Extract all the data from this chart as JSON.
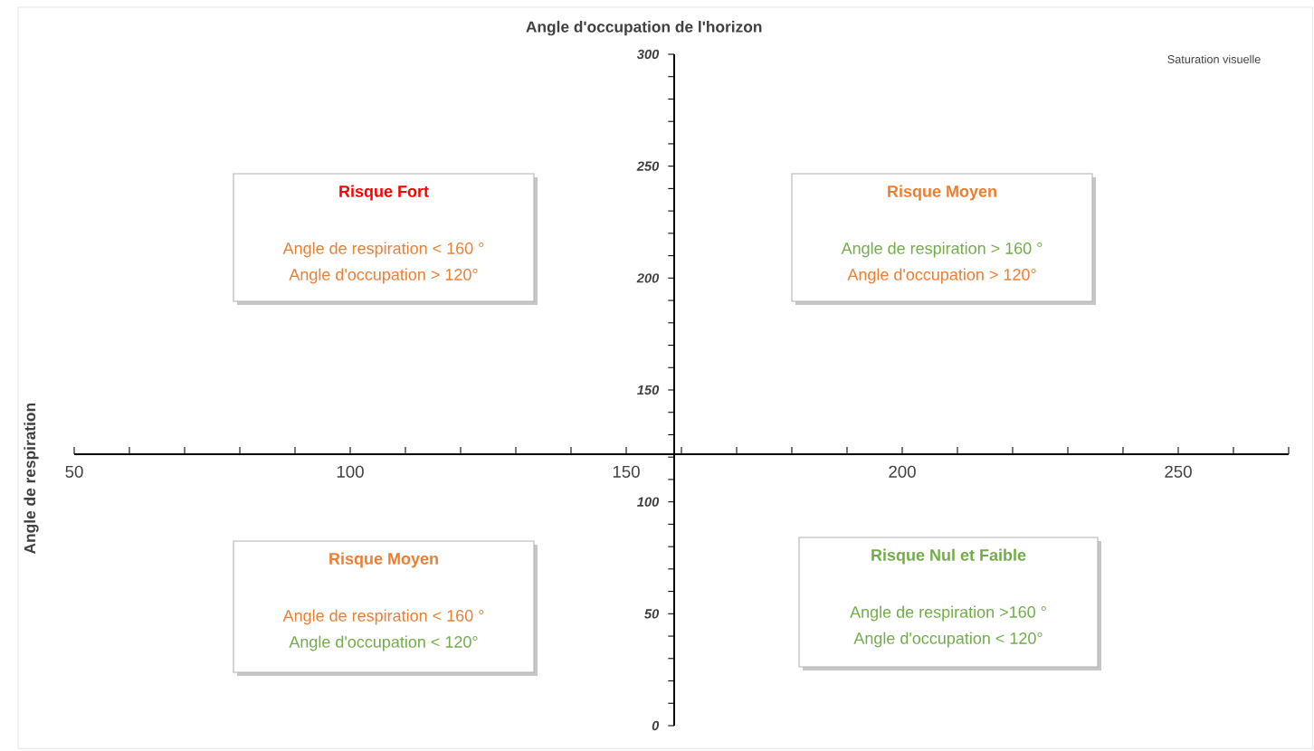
{
  "chart_data": {
    "type": "scatter",
    "xlabel": "Angle d'occupation de l'horizon",
    "ylabel": "Angle de respiration",
    "xlim": [
      50,
      270
    ],
    "ylim": [
      0,
      300
    ],
    "xticks": [
      50,
      100,
      150,
      200,
      250
    ],
    "yticks": [
      0,
      50,
      100,
      150,
      200,
      250,
      300
    ],
    "annotations": [
      "Risque Fort",
      "Angle de respiration < 160 °",
      "Angle d'occupation > 120°",
      "Risque Moyen",
      "Angle de respiration > 160 °",
      "Angle d'occupation > 120°",
      "Risque Moyen",
      "Angle de respiration < 160 °",
      "Angle d'occupation < 120°",
      "Risque Nul et Faible",
      "Angle de respiration >160 °",
      "Angle d'occupation < 120°",
      "Saturation visuelle"
    ]
  }
}
